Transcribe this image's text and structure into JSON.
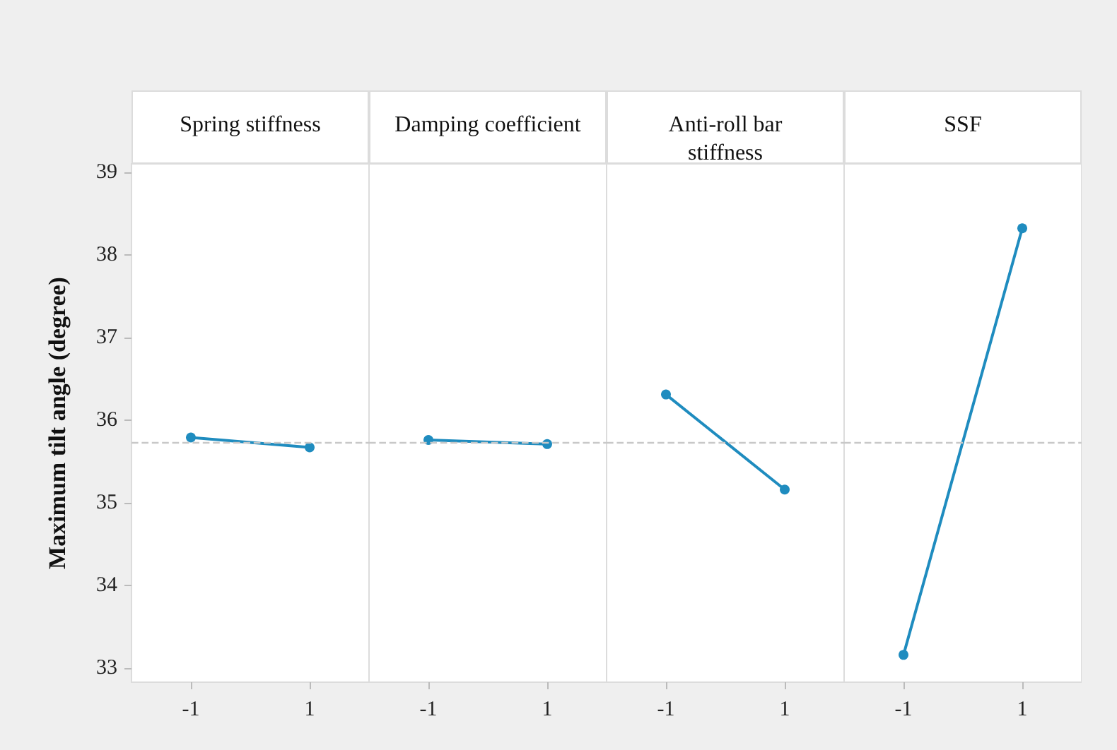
{
  "chart_data": [
    {
      "type": "line",
      "title": "Spring stiffness",
      "ylabel": "Maximum tilt angle (degree)",
      "categories": [
        "-1",
        "1"
      ],
      "series": [
        {
          "color": "#1f8cbf",
          "values": [
            35.79,
            35.67
          ]
        }
      ],
      "ylim": [
        32.83,
        39.1
      ],
      "yticks": [
        33,
        34,
        35,
        36,
        37,
        38,
        39
      ],
      "marker": "circle",
      "line_style": "solid",
      "grid": false,
      "ref_lines": [
        {
          "axis": "y",
          "value": 35.73,
          "color": "#c8c8c8",
          "line_style": "dashed"
        }
      ]
    },
    {
      "type": "line",
      "title": "Damping coefficient",
      "categories": [
        "-1",
        "1"
      ],
      "series": [
        {
          "color": "#1f8cbf",
          "values": [
            35.76,
            35.71
          ]
        }
      ],
      "ylim": [
        32.83,
        39.1
      ],
      "yticks": [
        33,
        34,
        35,
        36,
        37,
        38,
        39
      ],
      "tick_labels": "x",
      "marker": "circle",
      "line_style": "solid",
      "grid": false,
      "ref_lines": [
        {
          "axis": "y",
          "value": 35.73,
          "color": "#c8c8c8",
          "line_style": "dashed"
        }
      ]
    },
    {
      "type": "line",
      "title": "Anti-roll bar stiffness",
      "categories": [
        "-1",
        "1"
      ],
      "series": [
        {
          "color": "#1f8cbf",
          "values": [
            36.31,
            35.16
          ]
        }
      ],
      "ylim": [
        32.83,
        39.1
      ],
      "yticks": [
        33,
        34,
        35,
        36,
        37,
        38,
        39
      ],
      "tick_labels": "x",
      "marker": "circle",
      "line_style": "solid",
      "grid": false,
      "ref_lines": [
        {
          "axis": "y",
          "value": 35.73,
          "color": "#c8c8c8",
          "line_style": "dashed"
        }
      ]
    },
    {
      "type": "line",
      "title": "SSF",
      "categories": [
        "-1",
        "1"
      ],
      "series": [
        {
          "color": "#1f8cbf",
          "values": [
            33.16,
            38.32
          ]
        }
      ],
      "ylim": [
        32.83,
        39.1
      ],
      "yticks": [
        33,
        34,
        35,
        36,
        37,
        38,
        39
      ],
      "tick_labels": "x",
      "marker": "circle",
      "line_style": "solid",
      "grid": false,
      "ref_lines": [
        {
          "axis": "y",
          "value": 35.73,
          "color": "#c8c8c8",
          "line_style": "dashed"
        }
      ]
    }
  ]
}
